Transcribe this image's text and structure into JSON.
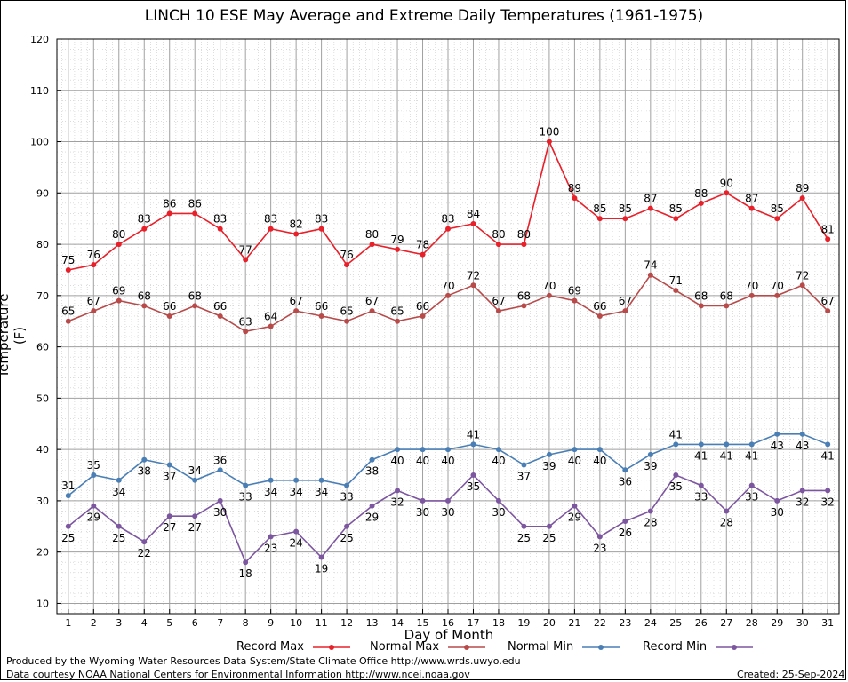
{
  "chart_data": {
    "type": "line",
    "title": "LINCH 10 ESE May Average and Extreme Daily Temperatures (1961-1975)",
    "xlabel": "Day of Month",
    "ylabel": "Temperature (F)",
    "ylim": [
      8,
      120
    ],
    "yticks": [
      10,
      20,
      30,
      40,
      50,
      60,
      70,
      80,
      90,
      100,
      110,
      120
    ],
    "x": [
      1,
      2,
      3,
      4,
      5,
      6,
      7,
      8,
      9,
      10,
      11,
      12,
      13,
      14,
      15,
      16,
      17,
      18,
      19,
      20,
      21,
      22,
      23,
      24,
      25,
      26,
      27,
      28,
      29,
      30,
      31
    ],
    "grid": true,
    "legend_position": "bottom",
    "series": [
      {
        "name": "Record Max",
        "color": "#e8202a",
        "values": [
          75,
          76,
          80,
          83,
          86,
          86,
          83,
          77,
          83,
          82,
          83,
          76,
          80,
          79,
          78,
          83,
          84,
          80,
          80,
          100,
          89,
          85,
          85,
          87,
          85,
          88,
          90,
          87,
          85,
          89,
          81
        ]
      },
      {
        "name": "Normal Max",
        "color": "#b84a4a",
        "values": [
          65,
          67,
          69,
          68,
          66,
          68,
          66,
          63,
          64,
          67,
          66,
          65,
          67,
          65,
          66,
          70,
          72,
          67,
          68,
          70,
          69,
          66,
          67,
          74,
          71,
          68,
          68,
          70,
          70,
          72,
          67
        ]
      },
      {
        "name": "Normal Min",
        "color": "#4a7fb5",
        "values": [
          31,
          35,
          34,
          38,
          37,
          34,
          36,
          33,
          34,
          34,
          34,
          33,
          38,
          40,
          40,
          40,
          41,
          40,
          37,
          39,
          40,
          40,
          36,
          39,
          41,
          41,
          41,
          41,
          43,
          43,
          41
        ]
      },
      {
        "name": "Record Min",
        "color": "#7d56a0",
        "values": [
          25,
          29,
          25,
          22,
          27,
          27,
          30,
          18,
          23,
          24,
          19,
          25,
          29,
          32,
          30,
          30,
          35,
          30,
          25,
          25,
          29,
          23,
          26,
          28,
          35,
          33,
          28,
          33,
          30,
          32,
          32
        ]
      }
    ]
  },
  "footer": {
    "produced_by": "Produced by the Wyoming Water Resources Data System/State Climate Office http://www.wrds.uwyo.edu",
    "courtesy": "Data courtesy NOAA National Centers for Environmental Information http://www.ncei.noaa.gov",
    "created": "Created:  25-Sep-2024"
  }
}
